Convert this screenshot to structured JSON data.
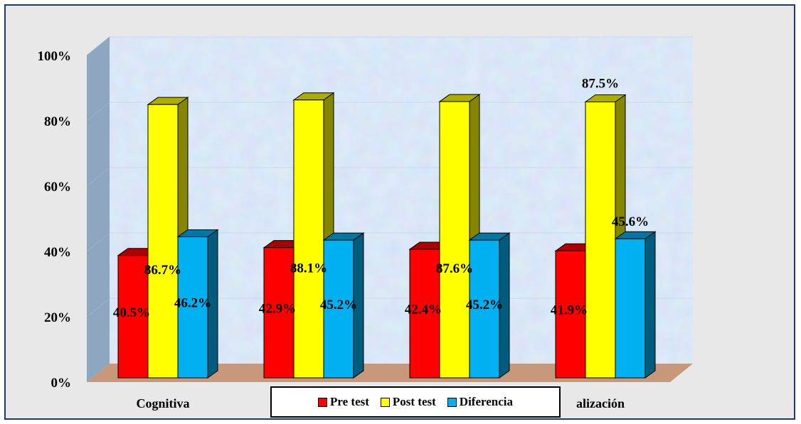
{
  "chart_data": {
    "type": "bar",
    "categories": [
      "Cognitiva",
      "",
      "",
      "alización"
    ],
    "series": [
      {
        "name": "Pre test",
        "values": [
          40.5,
          42.9,
          42.4,
          41.9
        ],
        "labels": [
          "40.5%",
          "42.9%",
          "42.4%",
          "41.9%"
        ],
        "color": "#ff0000"
      },
      {
        "name": "Post test",
        "values": [
          86.7,
          88.1,
          87.6,
          87.5
        ],
        "labels": [
          "86.7%",
          "88.1%",
          "87.6%",
          "87.5%"
        ],
        "color": "#ffff00"
      },
      {
        "name": "Diferencia",
        "values": [
          46.2,
          45.2,
          45.2,
          45.6
        ],
        "labels": [
          "46.2%",
          "45.2%",
          "45.2%",
          "45.6%"
        ],
        "color": "#00b0f0"
      }
    ],
    "y_ticks": [
      "0%",
      "20%",
      "40%",
      "60%",
      "80%",
      "100%"
    ],
    "ylim": [
      0,
      100
    ],
    "legend_position": "bottom",
    "grid": true,
    "three_d": true
  },
  "colors": {
    "frame_border": "#1f3a6e",
    "frame_background": "#e8e8e8",
    "wall_background": "#b8d4ee",
    "floor": "#c8987a"
  }
}
